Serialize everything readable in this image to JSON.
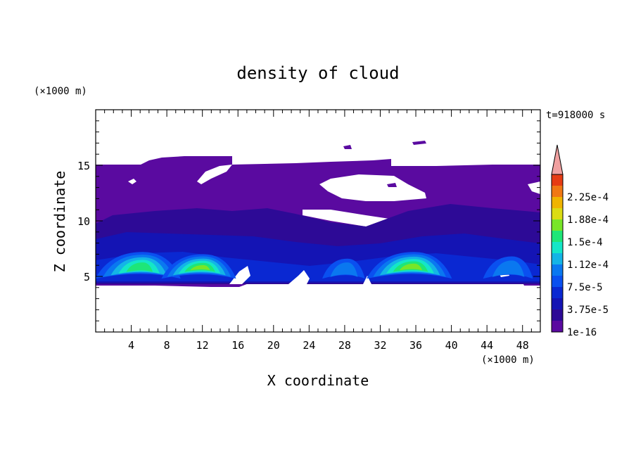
{
  "chart_data": {
    "type": "heatmap",
    "title": "density of cloud",
    "xlabel": "X coordinate",
    "ylabel": "Z coordinate",
    "x_unit": "(×1000 m)",
    "y_unit": "(×1000 m)",
    "time_label": "t=918000 s",
    "xlim": [
      0,
      50
    ],
    "ylim": [
      0,
      20
    ],
    "x_ticks": [
      4,
      8,
      12,
      16,
      20,
      24,
      28,
      32,
      36,
      40,
      44,
      48
    ],
    "y_ticks": [
      5,
      10,
      15
    ],
    "colorbar": {
      "labels": [
        {
          "text": "1e-16",
          "value": 0
        },
        {
          "text": "3.75e-5",
          "value": 3.75e-05
        },
        {
          "text": "7.5e-5",
          "value": 7.5e-05
        },
        {
          "text": "1.12e-4",
          "value": 0.0001125
        },
        {
          "text": "1.5e-4",
          "value": 0.00015
        },
        {
          "text": "1.88e-4",
          "value": 0.0001875
        },
        {
          "text": "2.25e-4",
          "value": 0.000225
        }
      ],
      "levels": 14,
      "max": 0.0002625,
      "colors": [
        "#5a0aa0",
        "#2d0a96",
        "#1414b4",
        "#0a28d2",
        "#0a50f0",
        "#0a78f0",
        "#14b4e6",
        "#14e6c8",
        "#1ee678",
        "#78e628",
        "#dcdc14",
        "#f0b400",
        "#f07814",
        "#e63c14",
        "#f0a0a0"
      ]
    },
    "cloud_layers": [
      {
        "level": 1,
        "z_bottom": 4.5,
        "z_top": 15.0,
        "x_start": 0,
        "x_end": 50
      },
      {
        "level": 2,
        "z_bottom": 4.6,
        "z_top": 11.0,
        "x_start": 0,
        "x_end": 50
      },
      {
        "level": 3,
        "z_bottom": 4.8,
        "z_top": 8.5,
        "x_start": 0,
        "x_end": 50
      }
    ],
    "cores": [
      {
        "x_center": 5.0,
        "x_half_width": 4.8,
        "z_bottom": 4.8,
        "z_top": 7.2,
        "peak_level": 8
      },
      {
        "x_center": 11.8,
        "x_half_width": 4.2,
        "z_bottom": 4.8,
        "z_top": 7.0,
        "peak_level": 9
      },
      {
        "x_center": 28.0,
        "x_half_width": 2.4,
        "z_bottom": 4.8,
        "z_top": 6.6,
        "peak_level": 5
      },
      {
        "x_center": 35.5,
        "x_half_width": 4.8,
        "z_bottom": 4.8,
        "z_top": 7.2,
        "peak_level": 9
      },
      {
        "x_center": 46.5,
        "x_half_width": 2.8,
        "z_bottom": 4.8,
        "z_top": 6.8,
        "peak_level": 5
      }
    ]
  }
}
